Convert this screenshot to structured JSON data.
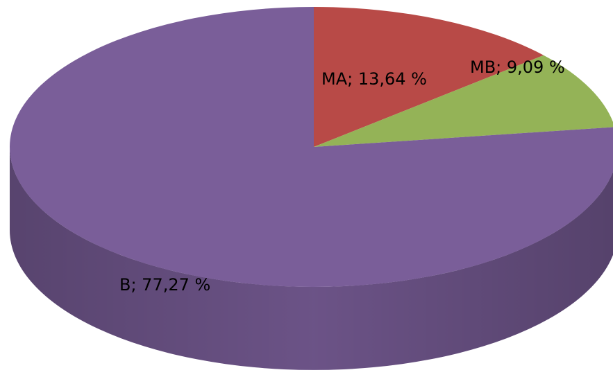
{
  "chart_data": {
    "type": "pie",
    "values": [
      13.64,
      9.09,
      77.27
    ],
    "value_labels": [
      "MA; 13,64 %",
      "MB; 9,09 %",
      "B; 77,27 %"
    ],
    "colors": [
      "#b84a47",
      "#94b357",
      "#7a5e99"
    ]
  }
}
